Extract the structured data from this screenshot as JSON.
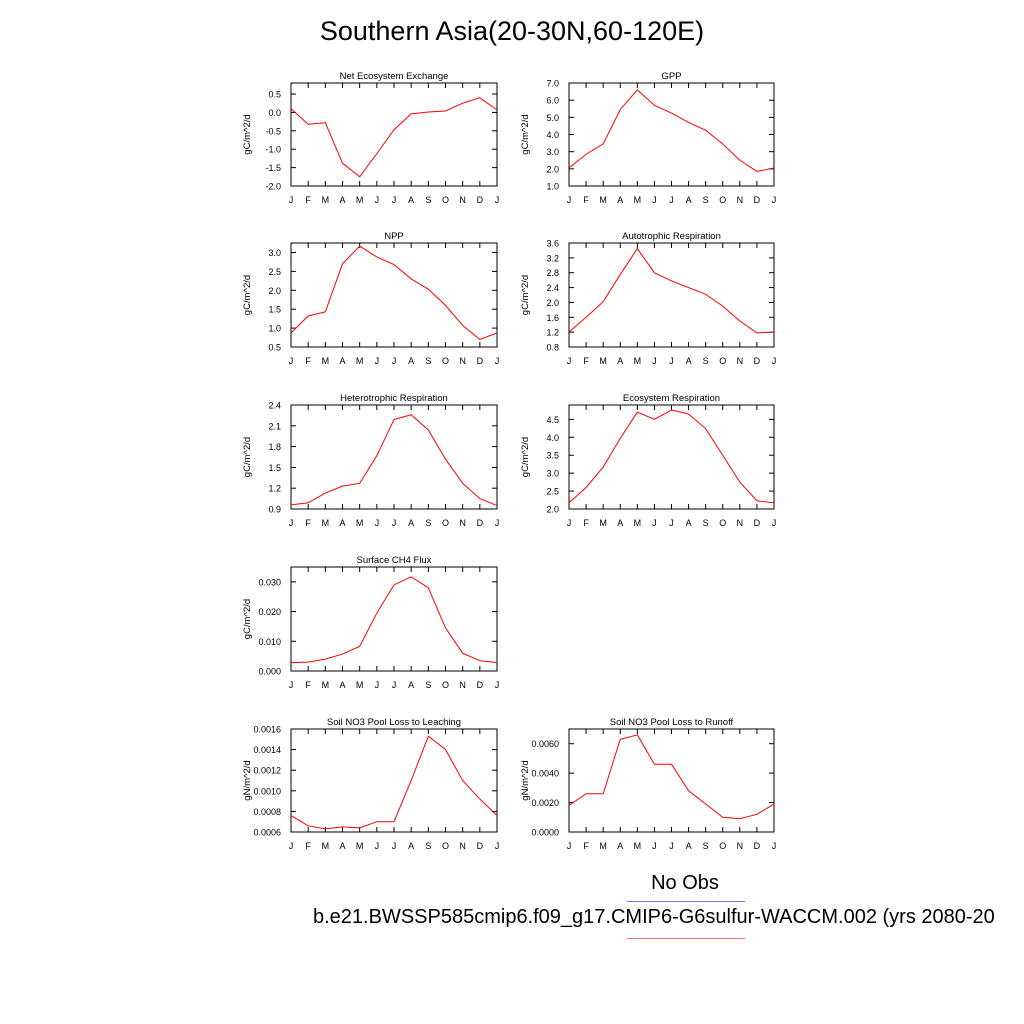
{
  "title": "Southern Asia(20-30N,60-120E)",
  "legend": {
    "obs_label": "No Obs",
    "case_label": "b.e21.BWSSP585cmip6.f09_g17.CMIP6-G6sulfur-WACCM.002 (yrs 2080-20",
    "obs_color": "#7777ee",
    "case_color": "#ee7777"
  },
  "chart_data": [
    {
      "type": "line",
      "title": "Net Ecosystem Exchange",
      "ylabel": "gC/m^2/d",
      "categories": [
        "J",
        "F",
        "M",
        "A",
        "M",
        "J",
        "J",
        "A",
        "S",
        "O",
        "N",
        "D",
        "J"
      ],
      "ylim": [
        -2.0,
        0.8
      ],
      "yticks": [
        "-2.0",
        "-1.5",
        "-1.0",
        "-0.5",
        "0.0",
        "0.5"
      ],
      "ytick_values": [
        -2.0,
        -1.5,
        -1.0,
        -0.5,
        0.0,
        0.5
      ],
      "series": [
        {
          "color": "#ff0000",
          "values": [
            0.1,
            -0.32,
            -0.28,
            -1.38,
            -1.75,
            -1.12,
            -0.47,
            -0.04,
            0.01,
            0.04,
            0.25,
            0.4,
            0.07
          ]
        }
      ]
    },
    {
      "type": "line",
      "title": "GPP",
      "ylabel": "gC/m^2/d",
      "categories": [
        "J",
        "F",
        "M",
        "A",
        "M",
        "J",
        "J",
        "A",
        "S",
        "O",
        "N",
        "D",
        "J"
      ],
      "ylim": [
        1.0,
        7.0
      ],
      "yticks": [
        "1.0",
        "2.0",
        "3.0",
        "4.0",
        "5.0",
        "6.0",
        "7.0"
      ],
      "ytick_values": [
        1.0,
        2.0,
        3.0,
        4.0,
        5.0,
        6.0,
        7.0
      ],
      "series": [
        {
          "color": "#ff0000",
          "values": [
            2.05,
            2.85,
            3.45,
            5.45,
            6.6,
            5.7,
            5.25,
            4.7,
            4.25,
            3.45,
            2.5,
            1.85,
            2.05
          ]
        }
      ]
    },
    {
      "type": "line",
      "title": "NPP",
      "ylabel": "gC/m^2/d",
      "categories": [
        "J",
        "F",
        "M",
        "A",
        "M",
        "J",
        "J",
        "A",
        "S",
        "O",
        "N",
        "D",
        "J"
      ],
      "ylim": [
        0.5,
        3.25
      ],
      "yticks": [
        "0.5",
        "1.0",
        "1.5",
        "2.0",
        "2.5",
        "3.0"
      ],
      "ytick_values": [
        0.5,
        1.0,
        1.5,
        2.0,
        2.5,
        3.0
      ],
      "series": [
        {
          "color": "#ff0000",
          "values": [
            0.87,
            1.32,
            1.43,
            2.7,
            3.17,
            2.88,
            2.68,
            2.3,
            2.03,
            1.6,
            1.07,
            0.7,
            0.87
          ]
        }
      ]
    },
    {
      "type": "line",
      "title": "Autotrophic Respiration",
      "ylabel": "gC/m^2/d",
      "categories": [
        "J",
        "F",
        "M",
        "A",
        "M",
        "J",
        "J",
        "A",
        "S",
        "O",
        "N",
        "D",
        "J"
      ],
      "ylim": [
        0.8,
        3.6
      ],
      "yticks": [
        "0.8",
        "1.2",
        "1.6",
        "2.0",
        "2.4",
        "2.8",
        "3.2",
        "3.6"
      ],
      "ytick_values": [
        0.8,
        1.2,
        1.6,
        2.0,
        2.4,
        2.8,
        3.2,
        3.6
      ],
      "series": [
        {
          "color": "#ff0000",
          "values": [
            1.2,
            1.6,
            2.02,
            2.75,
            3.45,
            2.8,
            2.58,
            2.4,
            2.22,
            1.9,
            1.5,
            1.18,
            1.2
          ]
        }
      ]
    },
    {
      "type": "line",
      "title": "Heterotrophic Respiration",
      "ylabel": "gC/m^2/d",
      "categories": [
        "J",
        "F",
        "M",
        "A",
        "M",
        "J",
        "J",
        "A",
        "S",
        "O",
        "N",
        "D",
        "J"
      ],
      "ylim": [
        0.9,
        2.4
      ],
      "yticks": [
        "0.9",
        "1.2",
        "1.5",
        "1.8",
        "2.1",
        "2.4"
      ],
      "ytick_values": [
        0.9,
        1.2,
        1.5,
        1.8,
        2.1,
        2.4
      ],
      "series": [
        {
          "color": "#ff0000",
          "values": [
            0.96,
            0.99,
            1.13,
            1.23,
            1.27,
            1.67,
            2.19,
            2.26,
            2.04,
            1.62,
            1.27,
            1.05,
            0.95
          ]
        }
      ]
    },
    {
      "type": "line",
      "title": "Ecosystem Respiration",
      "ylabel": "gC/m^2/d",
      "categories": [
        "J",
        "F",
        "M",
        "A",
        "M",
        "J",
        "J",
        "A",
        "S",
        "O",
        "N",
        "D",
        "J"
      ],
      "ylim": [
        2.0,
        4.9
      ],
      "yticks": [
        "2.0",
        "2.5",
        "3.0",
        "3.5",
        "4.0",
        "4.5"
      ],
      "ytick_values": [
        2.0,
        2.5,
        3.0,
        3.5,
        4.0,
        4.5
      ],
      "series": [
        {
          "color": "#ff0000",
          "values": [
            2.17,
            2.6,
            3.17,
            3.97,
            4.7,
            4.5,
            4.76,
            4.65,
            4.24,
            3.5,
            2.75,
            2.23,
            2.17
          ]
        }
      ]
    },
    {
      "type": "line",
      "title": "Surface CH4 Flux",
      "ylabel": "gC/m^2/d",
      "categories": [
        "J",
        "F",
        "M",
        "A",
        "M",
        "J",
        "J",
        "A",
        "S",
        "O",
        "N",
        "D",
        "J"
      ],
      "ylim": [
        0.0,
        0.035
      ],
      "yticks": [
        "0.000",
        "0.010",
        "0.020",
        "0.030"
      ],
      "ytick_values": [
        0.0,
        0.01,
        0.02,
        0.03
      ],
      "series": [
        {
          "color": "#ff0000",
          "values": [
            0.0028,
            0.003,
            0.004,
            0.0057,
            0.0083,
            0.0195,
            0.029,
            0.0317,
            0.028,
            0.0145,
            0.006,
            0.0035,
            0.0028
          ]
        }
      ]
    },
    {
      "type": "line",
      "title": "Soil NO3 Pool Loss to Leaching",
      "ylabel": "gN/m^2/d",
      "categories": [
        "J",
        "F",
        "M",
        "A",
        "M",
        "J",
        "J",
        "A",
        "S",
        "O",
        "N",
        "D",
        "J"
      ],
      "ylim": [
        0.0006,
        0.0016
      ],
      "yticks": [
        "0.0006",
        "0.0008",
        "0.0010",
        "0.0012",
        "0.0014",
        "0.0016"
      ],
      "ytick_values": [
        0.0006,
        0.0008,
        0.001,
        0.0012,
        0.0014,
        0.0016
      ],
      "series": [
        {
          "color": "#ff0000",
          "values": [
            0.00076,
            0.00066,
            0.00063,
            0.00065,
            0.00064,
            0.0007,
            0.0007,
            0.0011,
            0.00153,
            0.0014,
            0.0011,
            0.00092,
            0.00076
          ]
        }
      ]
    },
    {
      "type": "line",
      "title": "Soil NO3 Pool Loss to Runoff",
      "ylabel": "gN/m^2/d",
      "categories": [
        "J",
        "F",
        "M",
        "A",
        "M",
        "J",
        "J",
        "A",
        "S",
        "O",
        "N",
        "D",
        "J"
      ],
      "ylim": [
        0.0,
        0.007
      ],
      "yticks": [
        "0.0000",
        "0.0020",
        "0.0040",
        "0.0060"
      ],
      "ytick_values": [
        0.0,
        0.002,
        0.004,
        0.006
      ],
      "series": [
        {
          "color": "#ff0000",
          "values": [
            0.0018,
            0.0026,
            0.0026,
            0.0063,
            0.0066,
            0.0046,
            0.0046,
            0.0028,
            0.0019,
            0.001,
            0.0009,
            0.0012,
            0.0019
          ]
        }
      ]
    }
  ]
}
